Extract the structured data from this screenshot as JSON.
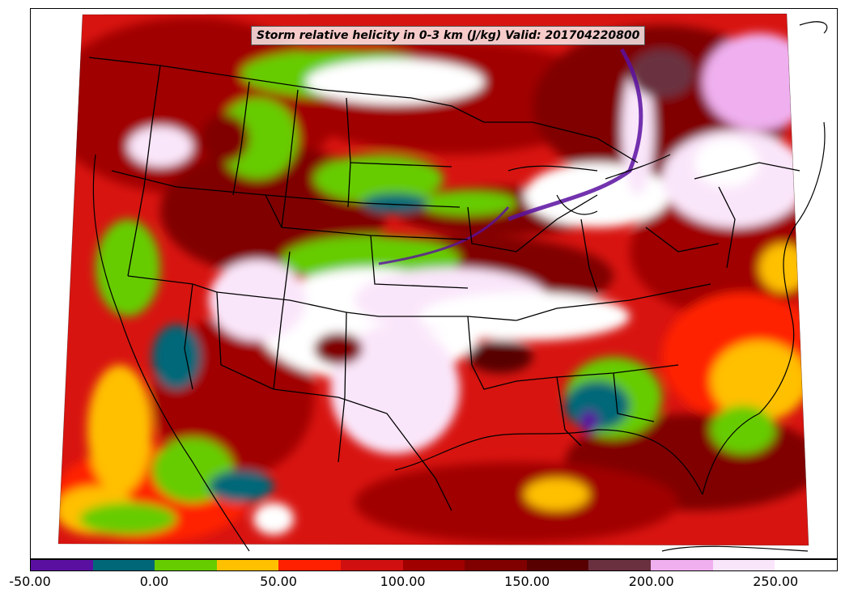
{
  "title": "Storm relative helicity in 0-3 km (J/kg) Valid: 201704220800",
  "colorbar": {
    "colors": [
      "#5a0fa0",
      "#006778",
      "#66cc00",
      "#ffc000",
      "#ff2000",
      "#d01010",
      "#a00000",
      "#800000",
      "#580000",
      "#6a3040",
      "#f0b0f0",
      "#fae6fa",
      "#ffffff"
    ],
    "ticks": [
      "-50.00",
      "0.00",
      "50.00",
      "100.00",
      "150.00",
      "200.00",
      "250.00"
    ]
  },
  "legend_values": [
    -50,
    0,
    50,
    100,
    150,
    200,
    250
  ]
}
